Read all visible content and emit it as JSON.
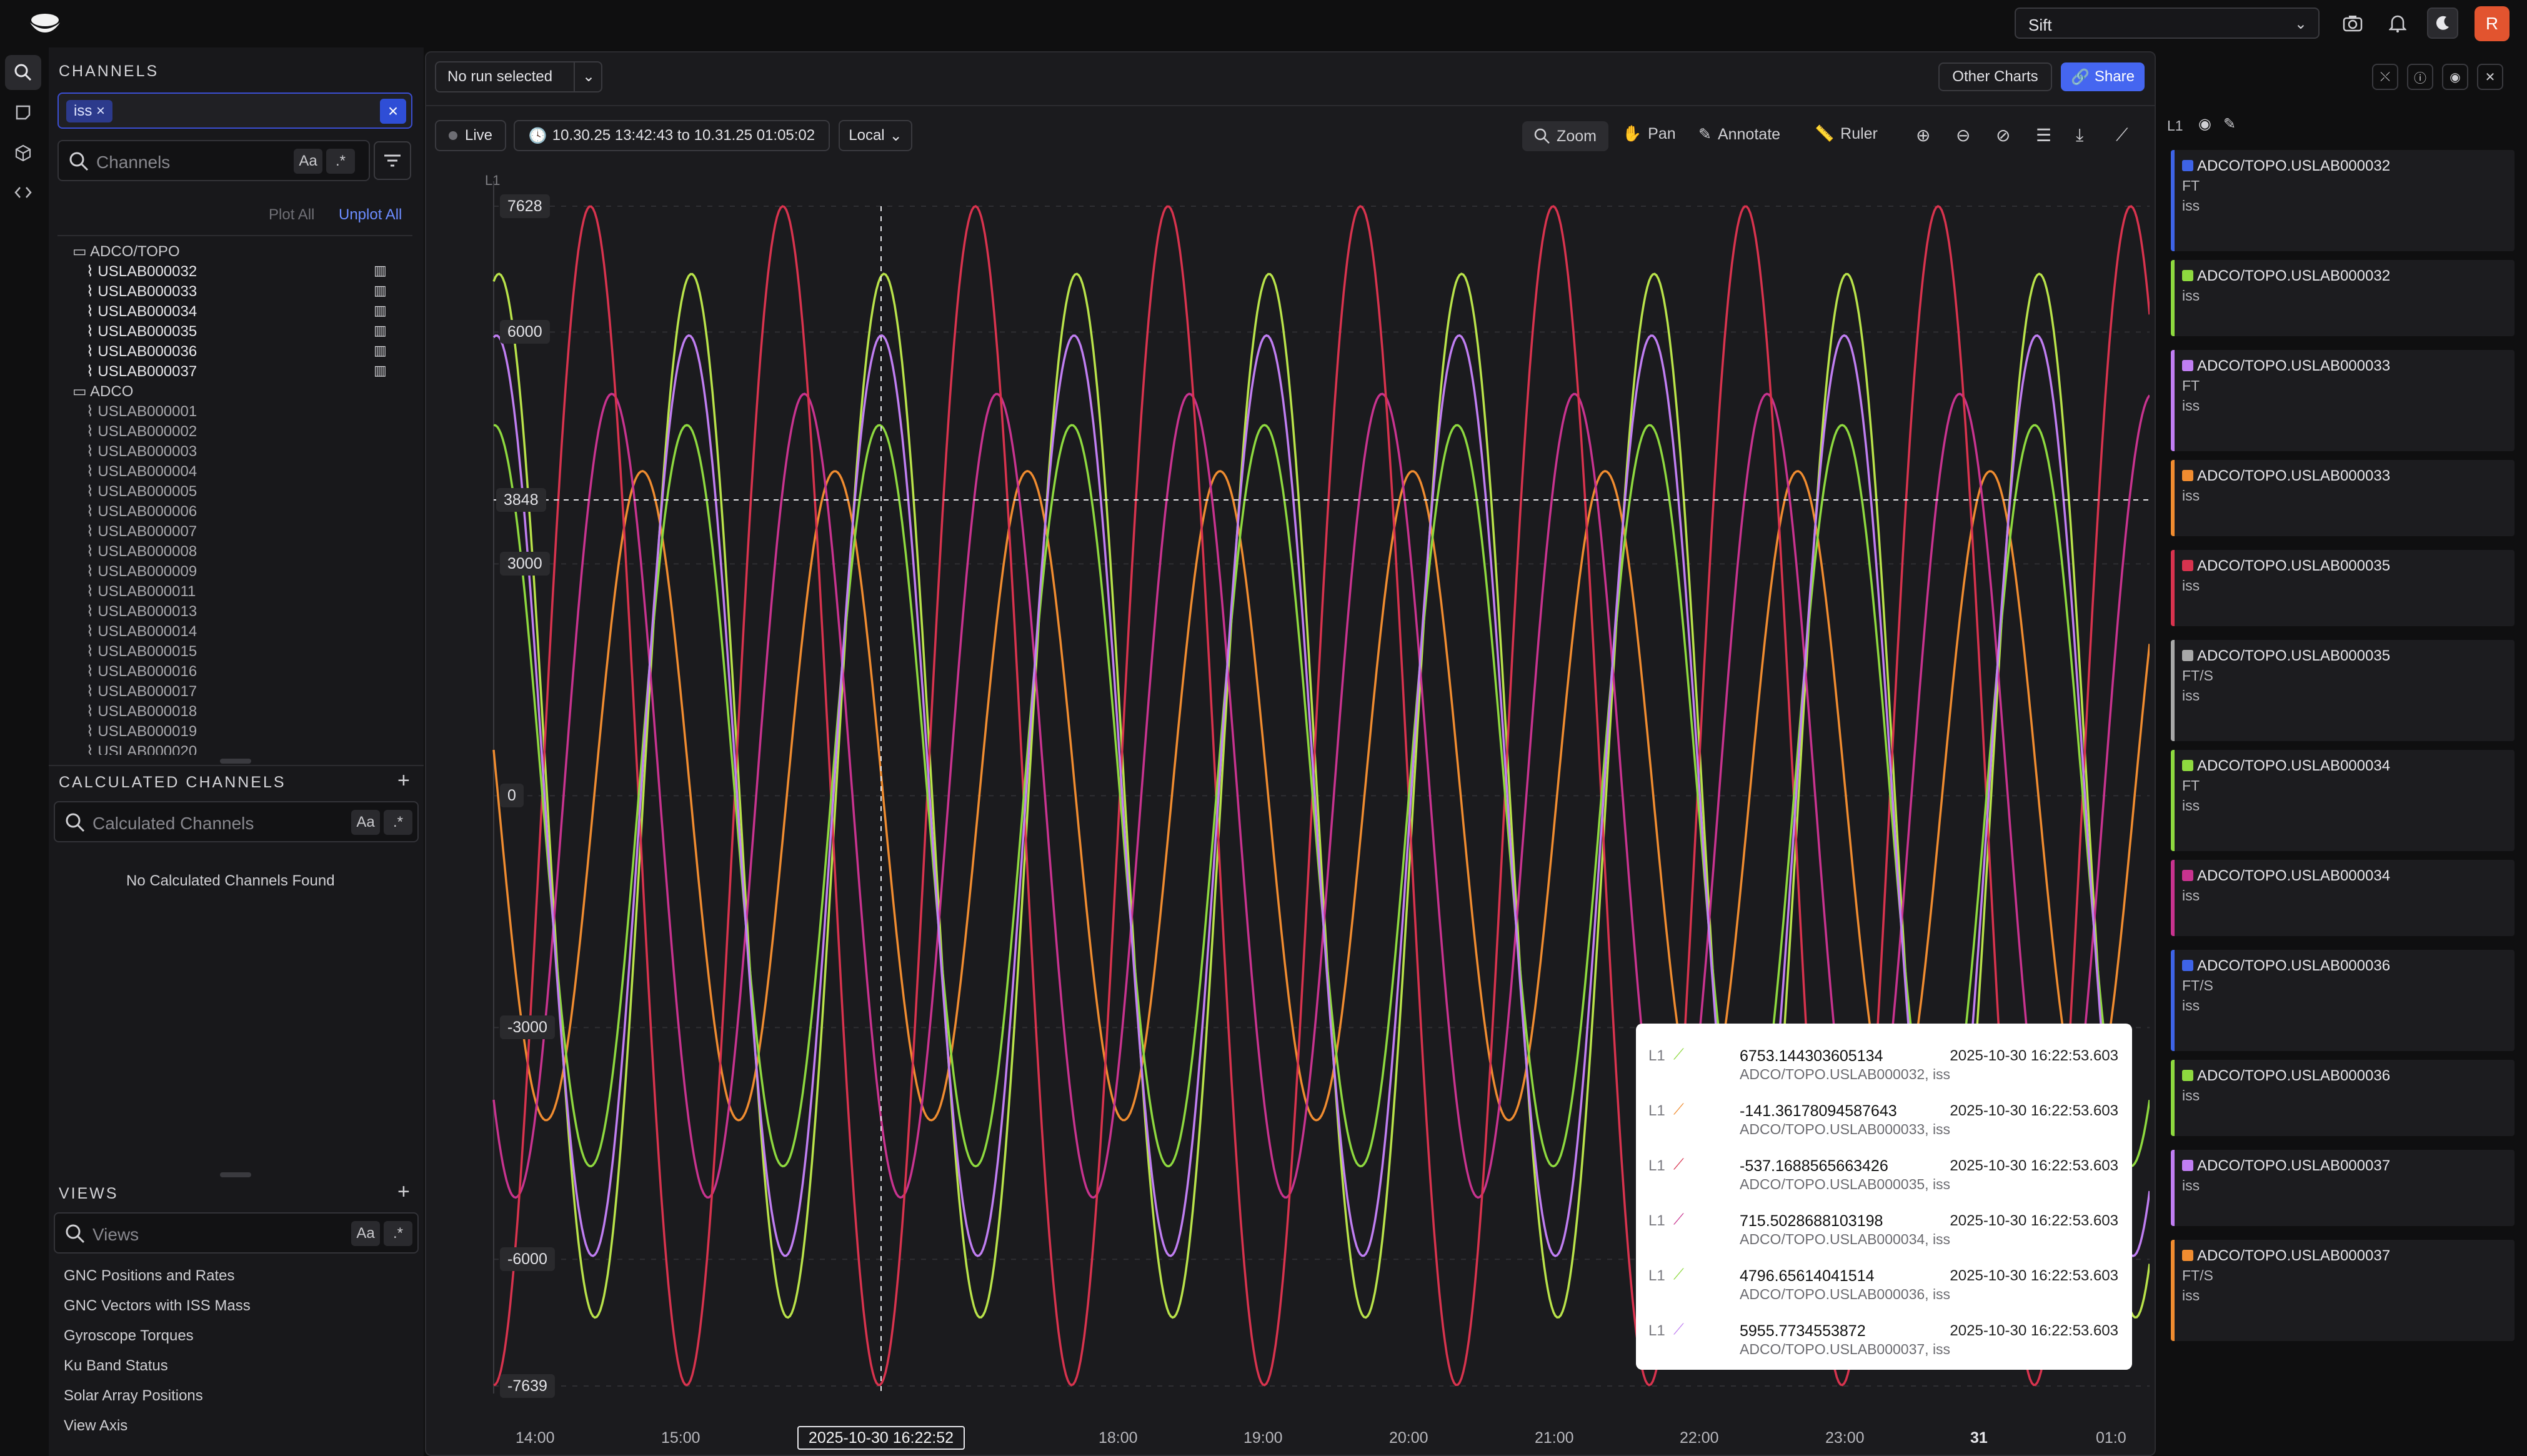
{
  "app": {
    "workspace_select": "Sift",
    "avatar_letter": "R"
  },
  "channels_panel": {
    "title": "CHANNELS",
    "filter_chip": "iss",
    "search_placeholder": "Channels",
    "case_label": "Aa",
    "regex_label": ".*",
    "plot_all": "Plot All",
    "unplot_all": "Unplot All",
    "folders": [
      {
        "name": "ADCO/TOPO",
        "items": [
          "USLAB000032",
          "USLAB000033",
          "USLAB000034",
          "USLAB000035",
          "USLAB000036",
          "USLAB000037"
        ]
      },
      {
        "name": "ADCO",
        "items": [
          "USLAB000001",
          "USLAB000002",
          "USLAB000003",
          "USLAB000004",
          "USLAB000005",
          "USLAB000006",
          "USLAB000007",
          "USLAB000008",
          "USLAB000009",
          "USLAB000011",
          "USLAB000013",
          "USLAB000014",
          "USLAB000015",
          "USLAB000016",
          "USLAB000017",
          "USLAB000018",
          "USLAB000019",
          "USLAB000020"
        ]
      }
    ]
  },
  "calculated_channels": {
    "title": "CALCULATED CHANNELS",
    "search_placeholder": "Calculated Channels",
    "empty_text": "No Calculated Channels Found"
  },
  "views": {
    "title": "VIEWS",
    "search_placeholder": "Views",
    "items": [
      "GNC Positions and Rates",
      "GNC Vectors with ISS Mass",
      "Gyroscope Torques",
      "Ku Band Status",
      "Solar Array Positions",
      "View Axis"
    ]
  },
  "chart": {
    "run_select": "No run selected",
    "other_charts": "Other Charts",
    "share": "Share",
    "live": "Live",
    "time_range": "10.30.25 13:42:43 to 10.31.25 01:05:02",
    "timezone": "Local",
    "tools": {
      "zoom": "Zoom",
      "pan": "Pan",
      "annotate": "Annotate",
      "ruler": "Ruler"
    },
    "axis_id": "L1",
    "cursor_y_label": "3848",
    "cursor_x_label": "2025-10-30 16:22:52"
  },
  "chart_data": {
    "type": "line",
    "ylim": [
      -7639,
      7628
    ],
    "y_ticks": [
      "7628",
      "6000",
      "3000",
      "0",
      "-3000",
      "-6000",
      "-7639"
    ],
    "x_ticks": [
      "14:00",
      "15:00",
      "18:00",
      "19:00",
      "20:00",
      "21:00",
      "22:00",
      "23:00",
      "31",
      "01:0"
    ],
    "series": [
      {
        "name": "ADCO/TOPO.USLAB000032",
        "color": "#b9e34a",
        "amplitude": 6753,
        "period_h": 1.55,
        "phase": 0.0
      },
      {
        "name": "ADCO/TOPO.USLAB000033",
        "color": "#f08c30",
        "amplitude": 4200,
        "period_h": 1.55,
        "phase": 1.6
      },
      {
        "name": "ADCO/TOPO.USLAB000034",
        "color": "#c8338f",
        "amplitude": 5200,
        "period_h": 1.55,
        "phase": 2.6
      },
      {
        "name": "ADCO/TOPO.USLAB000035",
        "color": "#d8334e",
        "amplitude": 7628,
        "period_h": 1.55,
        "phase": 3.3
      },
      {
        "name": "ADCO/TOPO.USLAB000036",
        "color": "#8ed93f",
        "amplitude": 4796,
        "period_h": 1.55,
        "phase": 0.15
      },
      {
        "name": "ADCO/TOPO.USLAB000037",
        "color": "#c07ef2",
        "amplitude": 5956,
        "period_h": 1.55,
        "phase": 0.08
      }
    ]
  },
  "tooltip": {
    "rows": [
      {
        "axis": "L1",
        "value": "6753.144303605134",
        "channel": "ADCO/TOPO.USLAB000032, iss",
        "timestamp": "2025-10-30 16:22:53.603",
        "color": "#8ed93f"
      },
      {
        "axis": "L1",
        "value": "-141.36178094587643",
        "channel": "ADCO/TOPO.USLAB000033, iss",
        "timestamp": "2025-10-30 16:22:53.603",
        "color": "#f08c30"
      },
      {
        "axis": "L1",
        "value": "-537.1688565663426",
        "channel": "ADCO/TOPO.USLAB000035, iss",
        "timestamp": "2025-10-30 16:22:53.603",
        "color": "#d8334e"
      },
      {
        "axis": "L1",
        "value": "715.5028688103198",
        "channel": "ADCO/TOPO.USLAB000034, iss",
        "timestamp": "2025-10-30 16:22:53.603",
        "color": "#c8338f"
      },
      {
        "axis": "L1",
        "value": "4796.65614041514",
        "channel": "ADCO/TOPO.USLAB000036, iss",
        "timestamp": "2025-10-30 16:22:53.603",
        "color": "#8ed93f"
      },
      {
        "axis": "L1",
        "value": "5955.7734553872",
        "channel": "ADCO/TOPO.USLAB000037, iss",
        "timestamp": "2025-10-30 16:22:53.603",
        "color": "#c07ef2"
      }
    ]
  },
  "legend": {
    "axis": "L1",
    "cards": [
      {
        "name": "ADCO/TOPO.USLAB000032",
        "lines": [
          "FT",
          "iss"
        ],
        "color": "#3e63e6"
      },
      {
        "name": "ADCO/TOPO.USLAB000032",
        "lines": [
          "iss"
        ],
        "color": "#8ed93f"
      },
      {
        "name": "ADCO/TOPO.USLAB000033",
        "lines": [
          "FT",
          "iss"
        ],
        "color": "#c07ef2"
      },
      {
        "name": "ADCO/TOPO.USLAB000033",
        "lines": [
          "iss"
        ],
        "color": "#f08c30"
      },
      {
        "name": "ADCO/TOPO.USLAB000035",
        "lines": [
          "iss"
        ],
        "color": "#d8334e"
      },
      {
        "name": "ADCO/TOPO.USLAB000035",
        "lines": [
          "FT/S",
          "iss"
        ],
        "color": "#a8a8a8"
      },
      {
        "name": "ADCO/TOPO.USLAB000034",
        "lines": [
          "FT",
          "iss"
        ],
        "color": "#8ed93f"
      },
      {
        "name": "ADCO/TOPO.USLAB000034",
        "lines": [
          "iss"
        ],
        "color": "#c8338f"
      },
      {
        "name": "ADCO/TOPO.USLAB000036",
        "lines": [
          "FT/S",
          "iss"
        ],
        "color": "#3e63e6"
      },
      {
        "name": "ADCO/TOPO.USLAB000036",
        "lines": [
          "iss"
        ],
        "color": "#8ed93f"
      },
      {
        "name": "ADCO/TOPO.USLAB000037",
        "lines": [
          "iss"
        ],
        "color": "#c07ef2"
      },
      {
        "name": "ADCO/TOPO.USLAB000037",
        "lines": [
          "FT/S",
          "iss"
        ],
        "color": "#f08c30"
      }
    ]
  }
}
